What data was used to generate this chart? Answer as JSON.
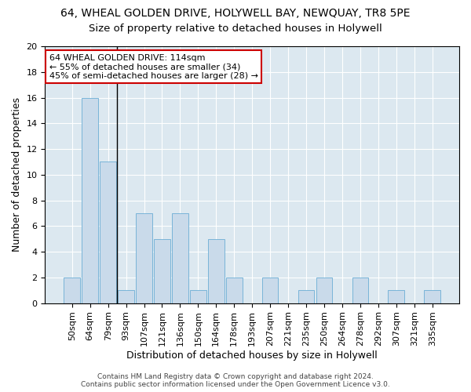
{
  "title_line1": "64, WHEAL GOLDEN DRIVE, HOLYWELL BAY, NEWQUAY, TR8 5PE",
  "title_line2": "Size of property relative to detached houses in Holywell",
  "xlabel": "Distribution of detached houses by size in Holywell",
  "ylabel": "Number of detached properties",
  "categories": [
    "50sqm",
    "64sqm",
    "79sqm",
    "93sqm",
    "107sqm",
    "121sqm",
    "136sqm",
    "150sqm",
    "164sqm",
    "178sqm",
    "193sqm",
    "207sqm",
    "221sqm",
    "235sqm",
    "250sqm",
    "264sqm",
    "278sqm",
    "292sqm",
    "307sqm",
    "321sqm",
    "335sqm"
  ],
  "values": [
    2,
    16,
    11,
    1,
    7,
    5,
    7,
    1,
    5,
    2,
    0,
    2,
    0,
    1,
    2,
    0,
    2,
    0,
    1,
    0,
    1
  ],
  "bar_color": "#c9daea",
  "bar_edge_color": "#6aadd5",
  "annotation_text": "64 WHEAL GOLDEN DRIVE: 114sqm\n← 55% of detached houses are smaller (34)\n45% of semi-detached houses are larger (28) →",
  "annotation_box_color": "#ffffff",
  "annotation_box_edge_color": "#cc0000",
  "vline_after_index": 2,
  "ylim": [
    0,
    20
  ],
  "yticks": [
    0,
    2,
    4,
    6,
    8,
    10,
    12,
    14,
    16,
    18,
    20
  ],
  "background_color": "#dce8f0",
  "grid_color": "#ffffff",
  "footer_text": "Contains HM Land Registry data © Crown copyright and database right 2024.\nContains public sector information licensed under the Open Government Licence v3.0.",
  "title_fontsize": 10,
  "subtitle_fontsize": 9.5,
  "ylabel_fontsize": 9,
  "xlabel_fontsize": 9,
  "tick_fontsize": 8,
  "annotation_fontsize": 8,
  "footer_fontsize": 6.5
}
